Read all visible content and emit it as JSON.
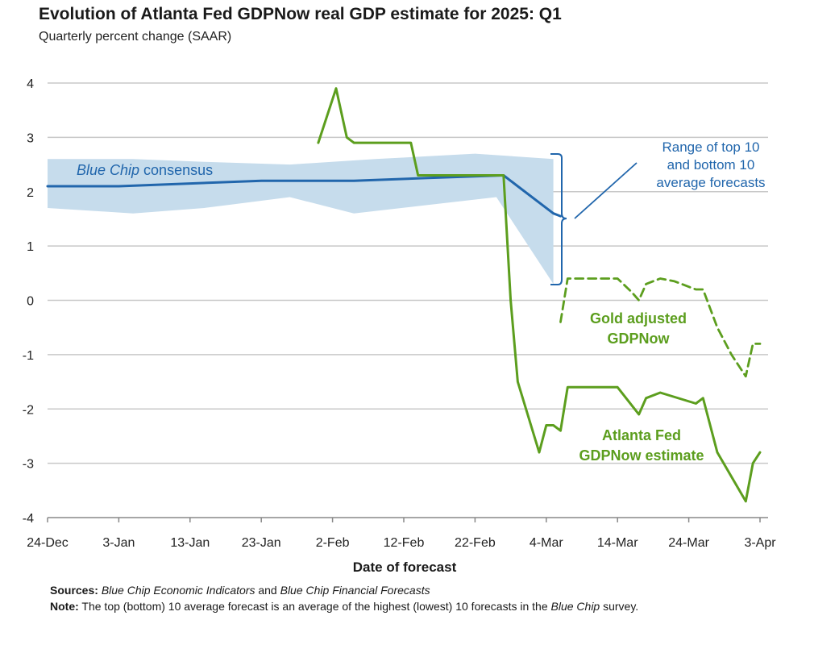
{
  "title": "Evolution of Atlanta Fed GDPNow real GDP estimate for 2025: Q1",
  "subtitle": "Quarterly percent change (SAAR)",
  "colors": {
    "blue_chip": "#2166ac",
    "band": "#c6dcec",
    "gdpnow": "#5c9e1e",
    "bracket": "#2166ac",
    "grid": "#c8c8c8"
  },
  "annotations": {
    "blue_chip_italic": "Blue Chip",
    "blue_chip_rest": " consensus",
    "range_line1": "Range of top 10",
    "range_line2": "and bottom 10",
    "range_line3": "average forecasts",
    "gold_line1": "Gold adjusted",
    "gold_line2": "GDPNow",
    "atl_line1": "Atlanta Fed",
    "atl_line2": "GDPNow estimate"
  },
  "notes": {
    "sources_label": "Sources:",
    "sources_italic_1": "Blue Chip Economic Indicators",
    "sources_and": " and ",
    "sources_italic_2": "Blue Chip Financial Forecasts",
    "note_label": "Note:",
    "note_text_1": " The top (bottom) 10 average forecast is an average of the highest (lowest) 10 forecasts in the ",
    "note_italic": "Blue Chip",
    "note_text_2": " survey."
  },
  "chart_data": {
    "type": "line",
    "xlabel": "Date of forecast",
    "ylabel": "",
    "x_tick_labels": [
      "24-Dec",
      "3-Jan",
      "13-Jan",
      "23-Jan",
      "2-Feb",
      "12-Feb",
      "22-Feb",
      "4-Mar",
      "14-Mar",
      "24-Mar",
      "3-Apr"
    ],
    "x_tick_days": [
      0,
      10,
      20,
      30,
      40,
      50,
      60,
      70,
      80,
      90,
      100
    ],
    "xlim_days": [
      0,
      100
    ],
    "ylim": [
      -4,
      4
    ],
    "y_ticks": [
      4,
      3,
      2,
      1,
      0,
      -1,
      -2,
      -3,
      -4
    ],
    "grid": true,
    "series": [
      {
        "name": "Blue Chip consensus",
        "style": "solid",
        "points": [
          [
            0,
            2.1
          ],
          [
            10,
            2.1
          ],
          [
            20,
            2.15
          ],
          [
            30,
            2.2
          ],
          [
            43,
            2.2
          ],
          [
            53,
            2.25
          ],
          [
            64,
            2.3
          ],
          [
            66,
            2.1
          ],
          [
            71,
            1.6
          ],
          [
            72,
            1.55
          ]
        ]
      },
      {
        "name": "Gold adjusted GDPNow",
        "style": "dashed",
        "points": [
          [
            72,
            -0.4
          ],
          [
            73,
            0.4
          ],
          [
            78,
            0.4
          ],
          [
            80,
            0.4
          ],
          [
            82,
            0.15
          ],
          [
            83,
            0.0
          ],
          [
            84,
            0.3
          ],
          [
            86,
            0.4
          ],
          [
            88,
            0.35
          ],
          [
            91,
            0.2
          ],
          [
            92,
            0.2
          ],
          [
            94,
            -0.5
          ],
          [
            96,
            -1.0
          ],
          [
            98,
            -1.4
          ],
          [
            99,
            -0.8
          ],
          [
            100,
            -0.8
          ]
        ]
      },
      {
        "name": "Atlanta Fed GDPNow estimate",
        "style": "solid",
        "points": [
          [
            38,
            2.9
          ],
          [
            40.5,
            3.9
          ],
          [
            42,
            3.0
          ],
          [
            43,
            2.9
          ],
          [
            51,
            2.9
          ],
          [
            52,
            2.3
          ],
          [
            64,
            2.3
          ],
          [
            65,
            0.0
          ],
          [
            66,
            -1.5
          ],
          [
            69,
            -2.8
          ],
          [
            70,
            -2.3
          ],
          [
            71,
            -2.3
          ],
          [
            72,
            -2.4
          ],
          [
            73,
            -1.6
          ],
          [
            78,
            -1.6
          ],
          [
            80,
            -1.6
          ],
          [
            83,
            -2.1
          ],
          [
            84,
            -1.8
          ],
          [
            86,
            -1.7
          ],
          [
            91,
            -1.9
          ],
          [
            92,
            -1.8
          ],
          [
            94,
            -2.8
          ],
          [
            98,
            -3.7
          ],
          [
            99,
            -3.0
          ],
          [
            100,
            -2.8
          ]
        ]
      }
    ],
    "band": {
      "name": "Range of top 10 and bottom 10 average forecasts",
      "upper": [
        [
          0,
          2.6
        ],
        [
          12,
          2.6
        ],
        [
          22,
          2.55
        ],
        [
          34,
          2.5
        ],
        [
          46,
          2.6
        ],
        [
          60,
          2.7
        ],
        [
          71,
          2.6
        ]
      ],
      "lower": [
        [
          0,
          1.7
        ],
        [
          12,
          1.6
        ],
        [
          22,
          1.7
        ],
        [
          34,
          1.9
        ],
        [
          43,
          1.6
        ],
        [
          53,
          1.75
        ],
        [
          63,
          1.9
        ],
        [
          71,
          0.3
        ]
      ]
    }
  }
}
